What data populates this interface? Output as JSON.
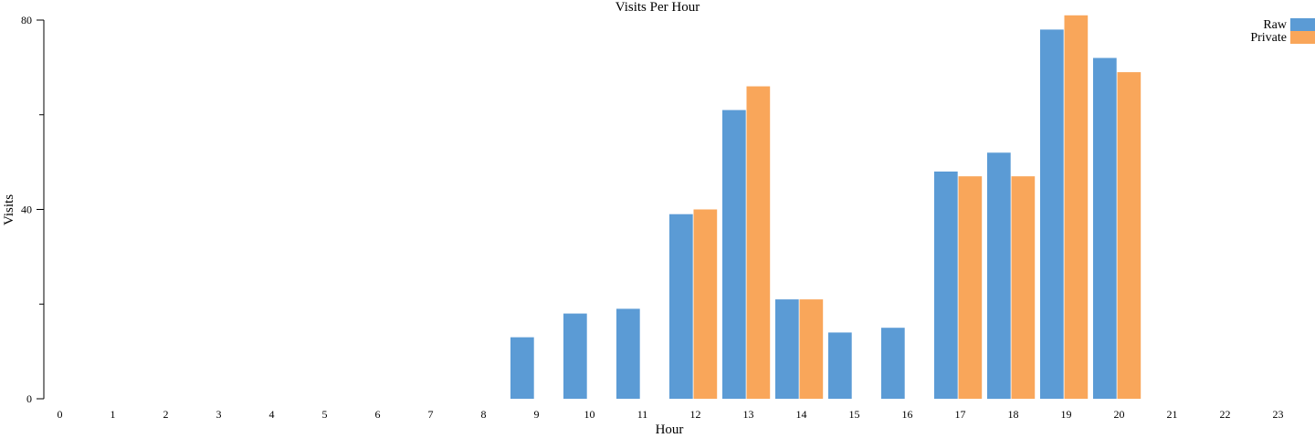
{
  "chart_data": {
    "type": "bar",
    "title": "Visits Per Hour",
    "xlabel": "Hour",
    "ylabel": "Visits",
    "ylim": [
      0,
      80
    ],
    "yticks_labeled": [
      0,
      40,
      80
    ],
    "yticks_minor": [
      20,
      60
    ],
    "grid": false,
    "legend_position": "top-right",
    "categories": [
      "0",
      "1",
      "2",
      "3",
      "4",
      "5",
      "6",
      "7",
      "8",
      "9",
      "10",
      "11",
      "12",
      "13",
      "14",
      "15",
      "16",
      "17",
      "18",
      "19",
      "20",
      "21",
      "22",
      "23"
    ],
    "series": [
      {
        "name": "Raw",
        "color": "#5b9bd5",
        "values": [
          0,
          0,
          0,
          0,
          0,
          0,
          0,
          0,
          0,
          13,
          18,
          19,
          39,
          61,
          21,
          14,
          15,
          48,
          52,
          78,
          72,
          0,
          0,
          0
        ]
      },
      {
        "name": "Private",
        "color": "#f9a65a",
        "values": [
          0,
          0,
          0,
          0,
          0,
          0,
          0,
          0,
          0,
          0,
          0,
          0,
          40,
          66,
          21,
          0,
          0,
          47,
          47,
          81,
          69,
          0,
          0,
          0
        ]
      }
    ]
  }
}
